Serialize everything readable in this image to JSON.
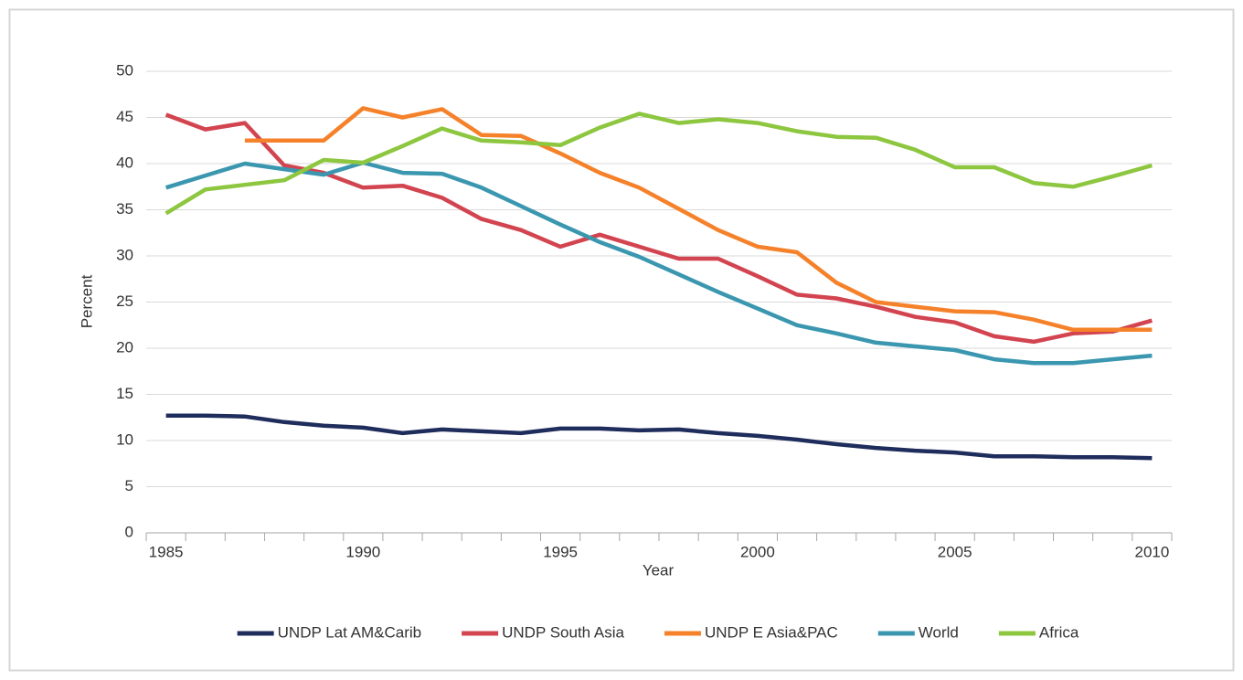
{
  "chart_data": {
    "type": "line",
    "x_label": "Year",
    "y_label": "Percent",
    "categories": [
      "1985",
      null,
      null,
      null,
      null,
      "1990",
      null,
      null,
      null,
      null,
      "1995",
      null,
      null,
      null,
      null,
      "2000",
      null,
      null,
      null,
      null,
      "2005",
      null,
      null,
      null,
      null,
      "2010"
    ],
    "series": [
      {
        "name": "UNDP Lat AM&Carib",
        "color": "#1f2d5c",
        "values": [
          12.7,
          12.7,
          12.6,
          12.0,
          11.6,
          11.4,
          10.8,
          11.2,
          11.0,
          10.8,
          11.3,
          11.3,
          11.1,
          11.2,
          10.8,
          10.5,
          10.1,
          9.6,
          9.2,
          8.9,
          8.7,
          8.3,
          8.3,
          8.2,
          8.2,
          8.1
        ]
      },
      {
        "name": "UNDP South Asia",
        "color": "#d2444f",
        "values": [
          45.3,
          43.7,
          44.4,
          39.8,
          39.0,
          37.4,
          37.6,
          36.3,
          34.0,
          32.8,
          31.0,
          32.3,
          31.0,
          29.7,
          29.7,
          27.8,
          25.8,
          25.4,
          24.5,
          23.4,
          22.8,
          21.3,
          20.7,
          21.6,
          21.8,
          23.0
        ]
      },
      {
        "name": "UNDP E Asia&PAC",
        "color": "#f5822a",
        "values": [
          null,
          null,
          42.5,
          42.5,
          42.5,
          46.0,
          45.0,
          45.9,
          43.1,
          43.0,
          41.1,
          39.0,
          37.4,
          35.1,
          32.8,
          31.0,
          30.4,
          27.1,
          25.0,
          24.5,
          24.0,
          23.9,
          23.1,
          22.0,
          22.0,
          22.0
        ]
      },
      {
        "name": "World",
        "color": "#3b97b0",
        "values": [
          37.4,
          38.7,
          40.0,
          39.4,
          38.8,
          40.1,
          39.0,
          38.9,
          37.4,
          35.4,
          33.4,
          31.5,
          29.9,
          28.0,
          26.1,
          24.3,
          22.5,
          21.6,
          20.6,
          20.2,
          19.8,
          18.8,
          18.4,
          18.4,
          18.8,
          19.2
        ]
      },
      {
        "name": "Africa",
        "color": "#8dc63f",
        "values": [
          34.6,
          37.2,
          37.7,
          38.2,
          40.4,
          40.1,
          41.9,
          43.8,
          42.5,
          42.3,
          42.0,
          43.9,
          45.4,
          44.4,
          44.8,
          44.4,
          43.5,
          42.9,
          42.8,
          41.5,
          39.6,
          39.6,
          37.9,
          37.5,
          38.6,
          39.8
        ]
      }
    ],
    "ylim": [
      0,
      50
    ],
    "yticks": [
      0,
      5,
      10,
      15,
      20,
      25,
      30,
      35,
      40,
      45,
      50
    ],
    "grid": true,
    "legend": "bottom"
  }
}
